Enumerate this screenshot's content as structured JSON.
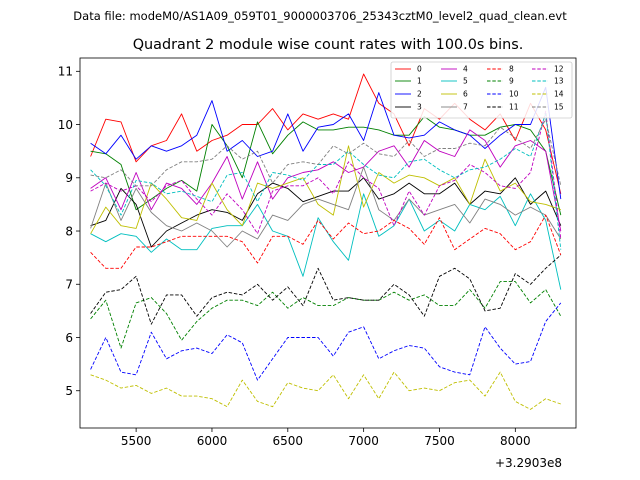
{
  "chart_data": {
    "type": "line",
    "suptitle": "Data file: modeM0/AS1A09_059T01_9000003706_25343cztM0_level2_quad_clean.evt",
    "title": "Quadrant 2 module wise count rates with 100.0s bins.",
    "xlabel": "",
    "ylabel": "",
    "x_offset_label": "+3.2903e8",
    "xlim": [
      5130,
      8400
    ],
    "ylim": [
      4.3,
      11.25
    ],
    "xticks": [
      5500,
      6000,
      6500,
      7000,
      7500,
      8000
    ],
    "yticks": [
      5,
      6,
      7,
      8,
      9,
      10,
      11
    ],
    "legend_position": "upper right",
    "x": [
      5200,
      5300,
      5400,
      5500,
      5600,
      5700,
      5800,
      5900,
      6000,
      6100,
      6200,
      6300,
      6400,
      6500,
      6600,
      6700,
      6800,
      6900,
      7000,
      7100,
      7200,
      7300,
      7400,
      7500,
      7600,
      7700,
      7800,
      7900,
      8000,
      8100,
      8200,
      8300
    ],
    "series": [
      {
        "name": "0",
        "color": "#ff0000",
        "dash": "solid",
        "values": [
          9.4,
          10.1,
          10.05,
          9.3,
          9.6,
          9.7,
          10.2,
          9.5,
          9.7,
          9.8,
          10.0,
          10.0,
          10.3,
          9.9,
          10.2,
          10.1,
          10.2,
          10.1,
          10.95,
          10.4,
          10.2,
          9.6,
          10.3,
          10.1,
          10.4,
          10.1,
          9.9,
          10.2,
          9.7,
          10.4,
          9.9,
          8.7
        ]
      },
      {
        "name": "1",
        "color": "#008000",
        "dash": "solid",
        "values": [
          9.5,
          9.45,
          9.25,
          8.4,
          8.6,
          8.8,
          8.95,
          8.75,
          10.0,
          9.6,
          9.0,
          10.05,
          9.45,
          9.8,
          10.05,
          9.9,
          9.9,
          9.95,
          9.95,
          9.9,
          9.8,
          9.8,
          10.15,
          9.95,
          9.9,
          9.8,
          9.8,
          9.95,
          10.0,
          9.9,
          9.5,
          8.3
        ]
      },
      {
        "name": "2",
        "color": "#0000ff",
        "dash": "solid",
        "values": [
          9.65,
          9.45,
          9.8,
          9.35,
          9.6,
          9.5,
          9.6,
          9.8,
          10.45,
          9.5,
          9.7,
          9.4,
          9.5,
          10.2,
          9.5,
          9.95,
          10.0,
          10.2,
          9.7,
          10.6,
          9.8,
          9.75,
          9.8,
          10.05,
          9.9,
          9.8,
          9.55,
          9.8,
          10.0,
          10.0,
          10.7,
          8.6
        ]
      },
      {
        "name": "3",
        "color": "#000000",
        "dash": "solid",
        "values": [
          8.1,
          8.2,
          8.8,
          8.5,
          7.7,
          8.0,
          8.15,
          8.3,
          8.4,
          8.35,
          8.2,
          8.7,
          8.9,
          8.8,
          8.55,
          8.65,
          8.75,
          8.75,
          9.0,
          8.6,
          8.7,
          8.9,
          8.7,
          8.7,
          8.9,
          8.5,
          8.75,
          8.7,
          9.0,
          8.5,
          8.75,
          8.1
        ]
      },
      {
        "name": "4",
        "color": "#bf00bf",
        "dash": "solid",
        "values": [
          8.8,
          9.0,
          8.4,
          9.1,
          8.4,
          8.9,
          8.8,
          8.5,
          8.9,
          9.4,
          8.6,
          9.3,
          8.6,
          9.0,
          9.1,
          9.15,
          9.3,
          9.1,
          9.2,
          9.5,
          9.6,
          9.2,
          9.7,
          9.5,
          9.4,
          9.9,
          9.7,
          9.2,
          9.6,
          9.7,
          9.5,
          8.0
        ]
      },
      {
        "name": "5",
        "color": "#00bfbf",
        "dash": "solid",
        "values": [
          7.95,
          7.8,
          7.95,
          7.9,
          7.6,
          7.85,
          7.65,
          7.65,
          8.05,
          8.1,
          8.1,
          8.5,
          8.0,
          7.9,
          7.15,
          8.25,
          7.8,
          7.45,
          8.7,
          7.9,
          8.1,
          8.6,
          8.0,
          8.2,
          8.0,
          8.5,
          8.4,
          8.65,
          8.1,
          8.7,
          8.2,
          6.9
        ]
      },
      {
        "name": "6",
        "color": "#bfbf00",
        "dash": "solid",
        "values": [
          7.95,
          8.45,
          8.1,
          8.05,
          8.9,
          8.6,
          8.25,
          8.2,
          8.9,
          8.4,
          8.1,
          8.9,
          8.8,
          8.9,
          9.0,
          8.5,
          8.3,
          9.6,
          8.45,
          9.1,
          8.9,
          9.05,
          9.0,
          8.85,
          9.0,
          8.5,
          9.35,
          8.75,
          8.9,
          8.55,
          8.5,
          8.4
        ]
      },
      {
        "name": "7",
        "color": "#808080",
        "dash": "solid",
        "values": [
          8.05,
          8.9,
          8.2,
          8.8,
          8.35,
          8.1,
          8.0,
          8.15,
          8.0,
          7.7,
          8.0,
          7.85,
          8.3,
          8.2,
          8.5,
          8.6,
          8.5,
          8.4,
          9.2,
          8.4,
          8.2,
          8.6,
          8.3,
          8.4,
          8.5,
          8.15,
          8.6,
          8.5,
          8.3,
          8.45,
          8.3,
          7.85
        ]
      },
      {
        "name": "8",
        "color": "#ff0000",
        "dash": "dashed",
        "values": [
          7.6,
          7.3,
          7.3,
          7.7,
          7.7,
          7.8,
          7.9,
          7.9,
          7.9,
          7.9,
          7.8,
          7.4,
          7.9,
          7.9,
          7.75,
          8.2,
          7.85,
          8.15,
          7.95,
          8.0,
          8.2,
          8.05,
          7.75,
          8.25,
          7.65,
          7.85,
          8.05,
          7.95,
          7.65,
          7.8,
          8.3,
          7.55
        ]
      },
      {
        "name": "9",
        "color": "#008000",
        "dash": "dashed",
        "values": [
          6.35,
          6.7,
          5.8,
          6.65,
          6.75,
          6.45,
          5.95,
          6.3,
          6.55,
          6.7,
          6.7,
          6.6,
          6.85,
          6.55,
          6.75,
          6.6,
          6.6,
          6.75,
          6.7,
          6.7,
          6.85,
          6.7,
          6.8,
          6.6,
          6.6,
          6.9,
          6.55,
          7.05,
          7.05,
          6.65,
          6.9,
          6.4
        ]
      },
      {
        "name": "10",
        "color": "#0000ff",
        "dash": "dashed",
        "values": [
          5.4,
          6.0,
          5.35,
          5.3,
          6.1,
          5.6,
          5.75,
          5.8,
          5.7,
          6.05,
          5.9,
          5.2,
          5.6,
          6.0,
          6.0,
          6.0,
          5.65,
          6.1,
          6.2,
          5.6,
          5.75,
          5.85,
          5.8,
          5.45,
          5.35,
          5.3,
          6.2,
          5.8,
          5.5,
          5.55,
          6.3,
          6.65
        ]
      },
      {
        "name": "11",
        "color": "#000000",
        "dash": "dashed",
        "values": [
          6.45,
          6.85,
          6.9,
          7.15,
          6.25,
          6.8,
          6.8,
          6.4,
          6.75,
          6.85,
          6.8,
          7.0,
          6.7,
          6.95,
          6.6,
          7.3,
          6.7,
          6.75,
          6.7,
          6.7,
          7.0,
          6.8,
          6.4,
          7.15,
          7.3,
          7.1,
          6.5,
          6.55,
          7.2,
          7.0,
          7.3,
          7.55
        ]
      },
      {
        "name": "12",
        "color": "#bf00bf",
        "dash": "dashed",
        "values": [
          8.75,
          8.9,
          8.75,
          8.85,
          8.55,
          8.85,
          8.95,
          8.6,
          8.3,
          8.7,
          8.4,
          7.95,
          8.75,
          8.85,
          8.85,
          9.0,
          8.7,
          9.3,
          9.0,
          8.8,
          8.1,
          8.75,
          8.3,
          8.85,
          8.95,
          9.25,
          9.1,
          8.85,
          8.8,
          9.1,
          10.25,
          7.85
        ]
      },
      {
        "name": "13",
        "color": "#00bfbf",
        "dash": "dashed",
        "values": [
          9.15,
          8.85,
          8.3,
          8.95,
          8.9,
          8.7,
          8.75,
          8.65,
          8.55,
          9.05,
          9.1,
          8.55,
          9.1,
          9.05,
          8.95,
          9.25,
          9.25,
          9.5,
          9.25,
          9.05,
          9.0,
          9.3,
          9.35,
          9.15,
          9.0,
          9.15,
          9.2,
          9.35,
          9.55,
          9.4,
          10.2,
          7.65
        ]
      },
      {
        "name": "14",
        "color": "#bfbf00",
        "dash": "dashed",
        "values": [
          5.3,
          5.2,
          5.05,
          5.1,
          4.95,
          5.05,
          4.9,
          4.9,
          4.85,
          4.7,
          5.2,
          4.8,
          4.7,
          5.15,
          5.05,
          5.0,
          5.3,
          4.85,
          5.3,
          4.85,
          5.35,
          5.0,
          5.05,
          5.0,
          5.15,
          5.2,
          4.9,
          5.35,
          4.8,
          4.65,
          4.85,
          4.75
        ]
      },
      {
        "name": "15",
        "color": "#808080",
        "dash": "dashed",
        "values": [
          9.05,
          9.0,
          9.15,
          8.85,
          8.85,
          9.15,
          9.3,
          9.3,
          9.35,
          9.6,
          9.35,
          9.5,
          8.9,
          9.25,
          9.3,
          9.25,
          9.6,
          9.45,
          9.65,
          9.45,
          9.4,
          9.7,
          9.4,
          9.55,
          9.55,
          9.65,
          9.6,
          9.95,
          9.75,
          9.55,
          10.1,
          8.85
        ]
      }
    ]
  }
}
